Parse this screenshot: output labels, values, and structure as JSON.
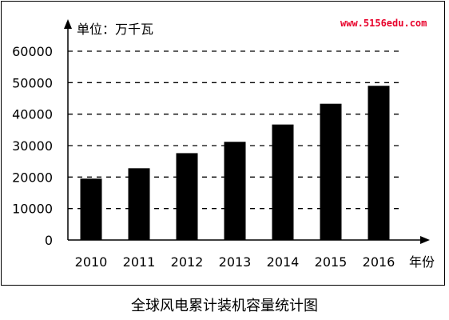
{
  "chart_data": {
    "type": "bar",
    "categories": [
      "2010",
      "2011",
      "2012",
      "2013",
      "2014",
      "2015",
      "2016"
    ],
    "values": [
      19500,
      22800,
      27600,
      31200,
      36700,
      43300,
      49000
    ],
    "ylim": [
      0,
      60000
    ],
    "yticks": [
      "0",
      "10000",
      "20000",
      "30000",
      "40000",
      "50000",
      "60000"
    ],
    "ylabel": "单位：万千瓦",
    "xlabel": "年份",
    "title": "全球风电累计装机容量统计图",
    "grid": "dashed horizontal",
    "bar_color": "#000000"
  },
  "watermark": "www.5156edu.com",
  "watermark_color": "#e8002a"
}
